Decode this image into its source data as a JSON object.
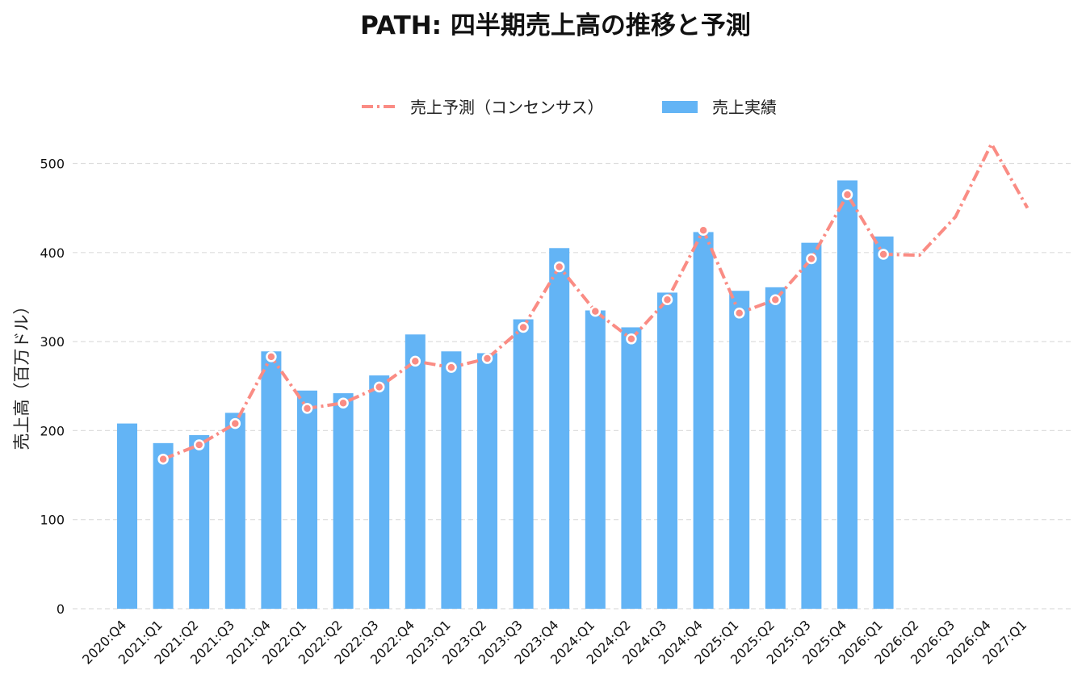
{
  "chart_data": {
    "type": "bar",
    "title": "PATH: 四半期売上高の推移と予測",
    "xlabel": "",
    "ylabel": "売上高（百万ドル）",
    "ylim": [
      0,
      540
    ],
    "yticks": [
      0,
      100,
      200,
      300,
      400,
      500
    ],
    "grid": "horizontal-dashed",
    "legend_position": "top-center",
    "categories": [
      "2020:Q4",
      "2021:Q1",
      "2021:Q2",
      "2021:Q3",
      "2021:Q4",
      "2022:Q1",
      "2022:Q2",
      "2022:Q3",
      "2022:Q4",
      "2023:Q1",
      "2023:Q2",
      "2023:Q3",
      "2023:Q4",
      "2024:Q1",
      "2024:Q2",
      "2024:Q3",
      "2024:Q4",
      "2025:Q1",
      "2025:Q2",
      "2025:Q3",
      "2025:Q4",
      "2026:Q1",
      "2026:Q2",
      "2026:Q3",
      "2026:Q4",
      "2027:Q1"
    ],
    "series": [
      {
        "name": "売上予測（コンセンサス）",
        "kind": "line",
        "color": "#fa8c84",
        "values": [
          null,
          168,
          184,
          208,
          283,
          225,
          231,
          249,
          278,
          271,
          281,
          316,
          384,
          334,
          303,
          347,
          425,
          332,
          347,
          393,
          465,
          398,
          397,
          440,
          522,
          450
        ]
      },
      {
        "name": "売上実績",
        "kind": "bar",
        "color": "#63b4f5",
        "values": [
          208,
          186,
          195,
          220,
          289,
          245,
          242,
          262,
          308,
          289,
          287,
          325,
          405,
          335,
          316,
          355,
          423,
          357,
          361,
          411,
          481,
          418,
          null,
          null,
          null,
          null
        ]
      }
    ]
  }
}
